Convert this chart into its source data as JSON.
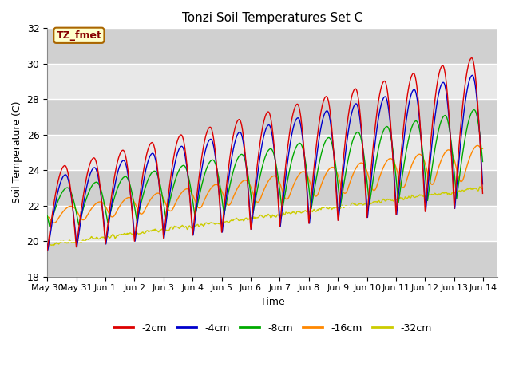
{
  "title": "Tonzi Soil Temperatures Set C",
  "xlabel": "Time",
  "ylabel": "Soil Temperature (C)",
  "ylim": [
    18,
    32
  ],
  "xlim_start": 0,
  "xlim_end": 15.5,
  "annotation_text": "TZ_fmet",
  "annotation_bbox_facecolor": "#ffffcc",
  "annotation_bbox_edgecolor": "#aa6600",
  "annotation_text_color": "#880000",
  "series": [
    {
      "label": "-2cm",
      "color": "#dd0000"
    },
    {
      "label": "-4cm",
      "color": "#0000cc"
    },
    {
      "label": "-8cm",
      "color": "#00aa00"
    },
    {
      "label": "-16cm",
      "color": "#ff8800"
    },
    {
      "label": "-32cm",
      "color": "#cccc00"
    }
  ],
  "tick_labels": [
    "May 30",
    "May 31",
    "Jun 1",
    "Jun 2",
    "Jun 3",
    "Jun 4",
    "Jun 5",
    "Jun 6",
    "Jun 7",
    "Jun 8",
    "Jun 9",
    "Jun 10",
    "Jun 11",
    "Jun 12",
    "Jun 13",
    "Jun 14"
  ],
  "bg_light": "#e8e8e8",
  "bg_dark": "#d0d0d0",
  "grid_color": "#ffffff",
  "figsize": [
    6.4,
    4.8
  ],
  "dpi": 100
}
